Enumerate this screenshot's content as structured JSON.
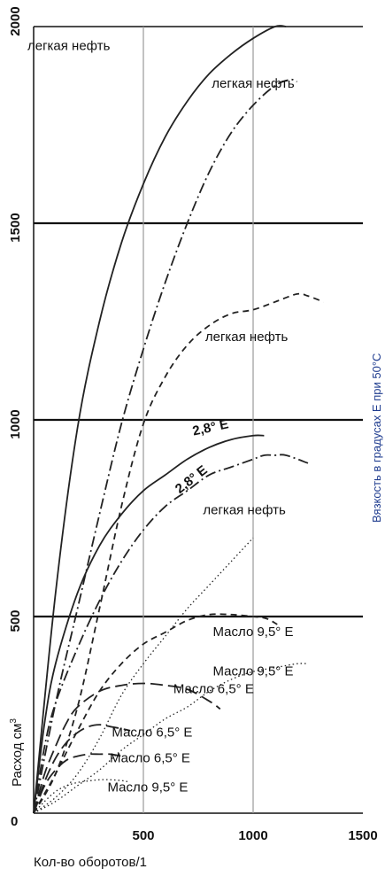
{
  "chart_data": {
    "type": "line",
    "xlabel": "Кол-во оборотов/1",
    "ylabel": "Расход см",
    "ylabel_sup": "3",
    "right_label": "Вязкость в градусах Е при 50°С",
    "xlim": [
      0,
      1500
    ],
    "ylim": [
      0,
      2000
    ],
    "x_ticks": [
      "500",
      "1000",
      "1500"
    ],
    "y_ticks": [
      {
        "value": 0,
        "label": "0"
      },
      {
        "value": 500,
        "label": "500"
      },
      {
        "value": 1000,
        "label": "1000"
      },
      {
        "value": 1500,
        "label": "1500"
      },
      {
        "value": 2000,
        "label": "2000"
      }
    ],
    "horizontal_lines": [
      500,
      1000,
      1500,
      2000
    ],
    "vertical_lines": [
      500,
      1000
    ],
    "series": [
      {
        "name": "легкая нефть",
        "style": "solid",
        "x": [
          0,
          100,
          200,
          300,
          400,
          500,
          600,
          700,
          800,
          900,
          1000,
          1100,
          1150
        ],
        "y": [
          0,
          560,
          980,
          1250,
          1450,
          1600,
          1720,
          1810,
          1880,
          1930,
          1970,
          2000,
          2000
        ],
        "label_at": [
          160,
          1940
        ]
      },
      {
        "name": "легкая нефть",
        "style": "dashdot",
        "x": [
          0,
          100,
          200,
          300,
          400,
          500,
          600,
          700,
          800,
          900,
          1000,
          1100,
          1170,
          1200
        ],
        "y": [
          0,
          280,
          520,
          760,
          990,
          1180,
          1350,
          1500,
          1630,
          1730,
          1800,
          1850,
          1865,
          1860
        ],
        "label_at": [
          1000,
          1845
        ]
      },
      {
        "name": "легкая нефть",
        "style": "dash",
        "x": [
          0,
          100,
          200,
          300,
          400,
          500,
          600,
          700,
          800,
          900,
          1000,
          1100,
          1200,
          1250,
          1320
        ],
        "y": [
          0,
          100,
          270,
          520,
          780,
          990,
          1110,
          1190,
          1240,
          1270,
          1280,
          1300,
          1320,
          1315,
          1300
        ],
        "label_at": [
          970,
          1200
        ]
      },
      {
        "name": "2,8° E",
        "style": "solid",
        "x": [
          0,
          50,
          100,
          200,
          300,
          400,
          500,
          600,
          700,
          800,
          900,
          1000,
          1050
        ],
        "y": [
          0,
          230,
          380,
          560,
          680,
          760,
          820,
          860,
          900,
          930,
          950,
          960,
          960
        ],
        "label_at": [
          810,
          970
        ]
      },
      {
        "name": "2,8° E",
        "style": "dashdot",
        "x": [
          0,
          50,
          100,
          200,
          300,
          400,
          500,
          600,
          700,
          800,
          900,
          1000,
          1050,
          1100,
          1150,
          1250
        ],
        "y": [
          0,
          170,
          280,
          420,
          540,
          640,
          720,
          780,
          820,
          860,
          880,
          900,
          910,
          910,
          910,
          890
        ],
        "label_at": [
          730,
          840
        ]
      },
      {
        "name": "легкая нефть",
        "style": "dot",
        "x": [
          0,
          100,
          200,
          300,
          400,
          500,
          600,
          700,
          800,
          900,
          1000
        ],
        "y": [
          0,
          40,
          100,
          190,
          300,
          380,
          450,
          520,
          580,
          640,
          700
        ],
        "label_at": [
          960,
          760
        ]
      },
      {
        "name": "Масло 9,5° E",
        "style": "dash",
        "x": [
          0,
          50,
          100,
          200,
          300,
          400,
          500,
          600,
          700,
          800,
          900,
          1000,
          1060,
          1110
        ],
        "y": [
          0,
          50,
          100,
          210,
          310,
          380,
          430,
          460,
          490,
          505,
          505,
          500,
          495,
          480
        ],
        "label_at": [
          1000,
          450
        ]
      },
      {
        "name": "Масло 9,5° E",
        "style": "dot",
        "x": [
          0,
          100,
          200,
          300,
          400,
          500,
          600,
          700,
          800,
          900,
          1000,
          1100,
          1200,
          1250
        ],
        "y": [
          0,
          30,
          70,
          110,
          160,
          200,
          240,
          270,
          310,
          340,
          360,
          370,
          380,
          380
        ],
        "label_at": [
          1000,
          350
        ]
      },
      {
        "name": "Масло 6,5° E",
        "style": "longdash",
        "x": [
          0,
          50,
          100,
          150,
          200,
          300,
          400,
          500,
          600,
          700,
          800,
          850
        ],
        "y": [
          0,
          100,
          170,
          230,
          270,
          310,
          325,
          330,
          325,
          315,
          285,
          265
        ],
        "label_at": [
          820,
          305
        ]
      },
      {
        "name": "Масло 6,5° E",
        "style": "longdash",
        "x": [
          0,
          50,
          100,
          150,
          200,
          250,
          300,
          350,
          400,
          440
        ],
        "y": [
          0,
          80,
          140,
          180,
          205,
          220,
          225,
          220,
          215,
          210
        ],
        "label_at": [
          540,
          195
        ]
      },
      {
        "name": "Масло 6,5° E",
        "style": "longdash",
        "x": [
          0,
          50,
          100,
          150,
          200,
          250,
          300,
          350,
          400
        ],
        "y": [
          0,
          70,
          110,
          135,
          145,
          150,
          150,
          150,
          145
        ],
        "label_at": [
          530,
          130
        ]
      },
      {
        "name": "Масло 9,5° E",
        "style": "dot",
        "x": [
          0,
          50,
          100,
          150,
          200,
          250,
          300,
          350,
          400,
          430
        ],
        "y": [
          0,
          30,
          55,
          70,
          78,
          82,
          85,
          85,
          83,
          80
        ],
        "label_at": [
          520,
          55
        ]
      }
    ],
    "grid": false
  }
}
